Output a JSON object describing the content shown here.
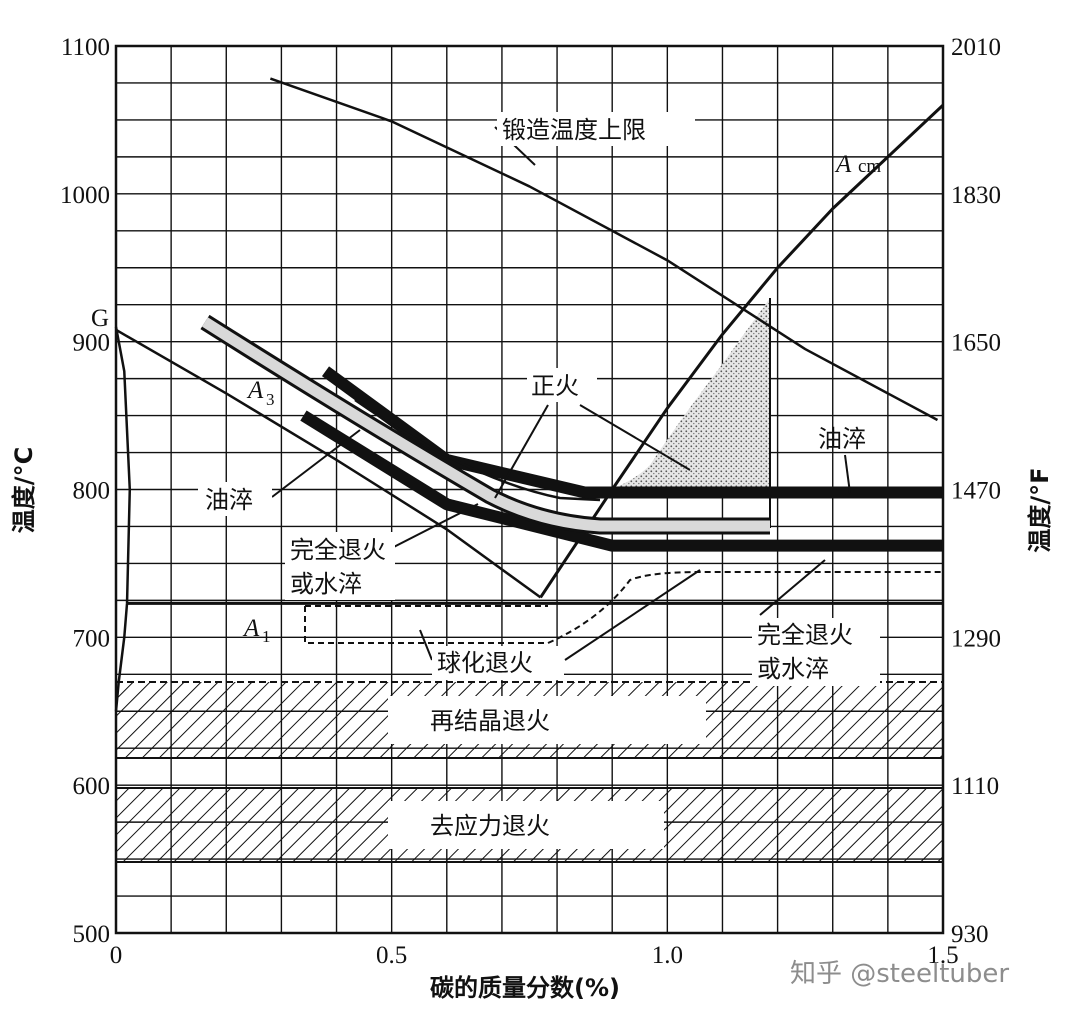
{
  "chart_data": {
    "type": "line",
    "xlabel": "碳的质量分数(%)",
    "ylabel_left": "温度/°C",
    "ylabel_right": "温度/°F",
    "xlim": [
      0,
      1.5
    ],
    "ylim": [
      500,
      1100
    ],
    "x_ticks": [
      "0",
      "0.5",
      "1.0",
      "1.5"
    ],
    "y_ticks_c": [
      "500",
      "600",
      "700",
      "800",
      "900",
      "1000",
      "1100"
    ],
    "y_ticks_f": [
      "930",
      "1110",
      "1290",
      "1470",
      "1650",
      "1830",
      "2010"
    ],
    "y_ticks_f_at_c": [
      500,
      600,
      700,
      800,
      900,
      1000,
      1100
    ],
    "grid": true,
    "series": [
      {
        "name": "A3",
        "x": [
          0.0,
          0.2,
          0.4,
          0.6,
          0.77
        ],
        "y": [
          908,
          865,
          820,
          773,
          727
        ]
      },
      {
        "name": "Acm",
        "x": [
          0.77,
          0.9,
          1.0,
          1.1,
          1.2,
          1.3,
          1.4,
          1.5
        ],
        "y": [
          727,
          800,
          855,
          905,
          950,
          990,
          1025,
          1060
        ]
      },
      {
        "name": "A1",
        "x": [
          0.02,
          1.5
        ],
        "y": [
          723,
          723
        ]
      },
      {
        "name": "锻造温度上限",
        "x": [
          0.28,
          0.5,
          0.75,
          1.0,
          1.25,
          1.49
        ],
        "y": [
          1078,
          1049,
          1005,
          955,
          895,
          847
        ]
      },
      {
        "name": "正火",
        "x": [
          0.38,
          0.6,
          0.85,
          1.5
        ],
        "y": [
          880,
          820,
          798,
          798
        ]
      },
      {
        "name": "完全退火或水淬",
        "x": [
          0.34,
          0.6,
          0.9,
          1.5
        ],
        "y": [
          850,
          790,
          762,
          762
        ]
      },
      {
        "name": "油淬",
        "x": [
          0.17,
          0.5,
          0.85,
          1.2
        ],
        "y": [
          910,
          830,
          780,
          778
        ]
      },
      {
        "name": "GS",
        "x": [
          0.0,
          0.015,
          0.025,
          0.02,
          0.015,
          0.005,
          0.0
        ],
        "y": [
          910,
          880,
          800,
          723,
          700,
          670,
          650
        ]
      }
    ],
    "bands": [
      {
        "name": "再结晶退火",
        "y": [
          625,
          675
        ]
      },
      {
        "name": "去应力退火",
        "y": [
          550,
          600
        ]
      }
    ],
    "annotations": {
      "forging_limit": "锻造温度上限",
      "acm_A": "A",
      "acm_sub": "cm",
      "a3_A": "A",
      "a3_sub": "3",
      "a1_A": "A",
      "a1_sub": "1",
      "g_point": "G",
      "normalizing": "正火",
      "oil_quench_left": "油淬",
      "oil_quench_right": "油淬",
      "full_anneal_left_1": "完全退火",
      "full_anneal_left_2": "或水淬",
      "full_anneal_right_1": "完全退火",
      "full_anneal_right_2": "或水淬",
      "spheroidize": "球化退火",
      "recrystallization": "再结晶退火",
      "stress_relief": "去应力退火"
    }
  },
  "watermark": "知乎 @steeltuber"
}
